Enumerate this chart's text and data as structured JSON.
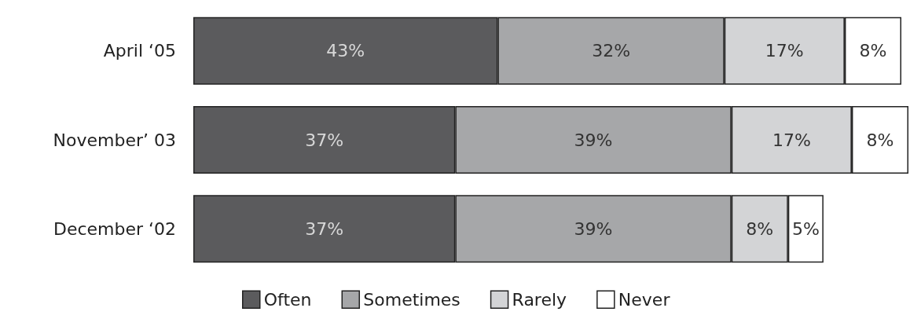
{
  "chart_data": {
    "type": "bar",
    "orientation": "horizontal",
    "stacked": true,
    "legend": "bottom",
    "categories": [
      "April ‘05",
      "November’ 03",
      "December ‘02"
    ],
    "series": [
      {
        "name": "Often",
        "color": "#5b5b5d",
        "values": [
          43,
          37,
          37
        ],
        "value_labels": [
          "43%",
          "37%",
          "37%"
        ]
      },
      {
        "name": "Sometimes",
        "color": "#a6a7a9",
        "values": [
          32,
          39,
          39
        ],
        "value_labels": [
          "32%",
          "39%",
          "39%"
        ]
      },
      {
        "name": "Rarely",
        "color": "#d3d4d6",
        "values": [
          17,
          17,
          8
        ],
        "value_labels": [
          "17%",
          "17%",
          "8%"
        ]
      },
      {
        "name": "Never",
        "color": "#ffffff",
        "values": [
          8,
          8,
          5
        ],
        "value_labels": [
          "8%",
          "8%",
          "5%"
        ]
      }
    ]
  }
}
